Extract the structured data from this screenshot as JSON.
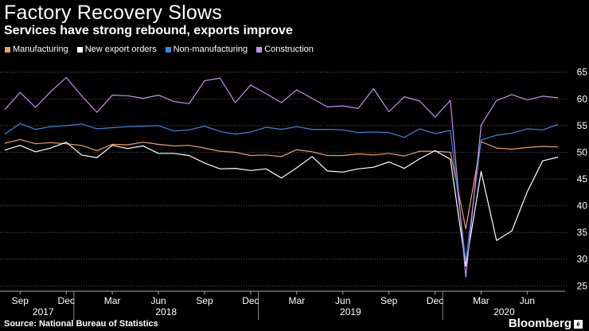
{
  "header": {
    "title": "Factory Recovery Slows",
    "subtitle": "Services have strong rebound, exports improve"
  },
  "footer": {
    "source": "Source: National Bureau of Statistics",
    "brand": "Bloomberg",
    "brand_mark": "é"
  },
  "colors": {
    "background": "#000000",
    "grid": "#5a5a5a",
    "text": "#ffffff"
  },
  "chart_data": {
    "type": "line",
    "title": "Factory Recovery Slows",
    "subtitle": "Services have strong rebound, exports improve",
    "ylim": [
      24,
      66
    ],
    "yticks": [
      25,
      30,
      35,
      40,
      45,
      50,
      55,
      60,
      65
    ],
    "y_axis_side": "right",
    "grid": true,
    "legend_position": "top-left",
    "x": [
      "2017-08",
      "2017-09",
      "2017-10",
      "2017-11",
      "2017-12",
      "2018-01",
      "2018-02",
      "2018-03",
      "2018-04",
      "2018-05",
      "2018-06",
      "2018-07",
      "2018-08",
      "2018-09",
      "2018-10",
      "2018-11",
      "2018-12",
      "2019-01",
      "2019-02",
      "2019-03",
      "2019-04",
      "2019-05",
      "2019-06",
      "2019-07",
      "2019-08",
      "2019-09",
      "2019-10",
      "2019-11",
      "2019-12",
      "2020-01",
      "2020-02",
      "2020-03",
      "2020-04",
      "2020-05",
      "2020-06",
      "2020-07",
      "2020-08"
    ],
    "x_tick_labels": [
      {
        "label": "Sep",
        "index": 1
      },
      {
        "label": "Dec",
        "index": 4
      },
      {
        "label": "Mar",
        "index": 7
      },
      {
        "label": "Jun",
        "index": 10
      },
      {
        "label": "Sep",
        "index": 13
      },
      {
        "label": "Dec",
        "index": 16
      },
      {
        "label": "Mar",
        "index": 19
      },
      {
        "label": "Jun",
        "index": 22
      },
      {
        "label": "Sep",
        "index": 25
      },
      {
        "label": "Dec",
        "index": 28
      },
      {
        "label": "Mar",
        "index": 31
      },
      {
        "label": "Jun",
        "index": 34
      }
    ],
    "year_labels": [
      {
        "label": "2017",
        "index": 2.5
      },
      {
        "label": "2018",
        "index": 10.5
      },
      {
        "label": "2019",
        "index": 22.5
      },
      {
        "label": "2020",
        "index": 32.5
      }
    ],
    "year_separators": [
      4.5,
      16.5,
      28.5
    ],
    "series": [
      {
        "name": "Manufacturing",
        "color": "#f0a060",
        "values": [
          51.7,
          52.4,
          51.6,
          51.8,
          51.6,
          51.3,
          50.3,
          51.5,
          51.4,
          51.9,
          51.5,
          51.2,
          51.3,
          50.8,
          50.2,
          50.0,
          49.4,
          49.5,
          49.2,
          50.5,
          50.1,
          49.4,
          49.4,
          49.7,
          49.5,
          49.8,
          49.3,
          50.2,
          50.2,
          50.0,
          35.7,
          52.0,
          50.8,
          50.6,
          50.9,
          51.1,
          51.0
        ]
      },
      {
        "name": "New export orders",
        "color": "#ffffff",
        "values": [
          50.4,
          51.3,
          50.1,
          50.8,
          51.9,
          49.5,
          49.0,
          51.3,
          50.7,
          51.2,
          49.8,
          49.8,
          49.4,
          48.0,
          46.9,
          47.0,
          46.6,
          46.9,
          45.2,
          47.1,
          49.2,
          46.5,
          46.3,
          46.9,
          47.2,
          48.2,
          47.0,
          48.8,
          50.3,
          48.7,
          28.7,
          46.4,
          33.5,
          35.3,
          42.6,
          48.4,
          49.1
        ]
      },
      {
        "name": "Non-manufacturing",
        "color": "#3a86e0",
        "values": [
          53.4,
          55.4,
          54.3,
          54.8,
          55.0,
          55.3,
          54.4,
          54.6,
          54.8,
          54.9,
          55.0,
          54.0,
          54.2,
          54.9,
          53.9,
          53.4,
          53.8,
          54.7,
          54.3,
          54.8,
          54.3,
          54.3,
          54.2,
          53.7,
          53.8,
          53.7,
          52.8,
          54.4,
          53.5,
          54.1,
          29.6,
          52.3,
          53.2,
          53.6,
          54.4,
          54.2,
          55.2
        ]
      },
      {
        "name": "Construction",
        "color": "#c88ef0",
        "values": [
          58.0,
          61.2,
          58.4,
          61.4,
          64.0,
          60.6,
          57.5,
          60.7,
          60.6,
          60.1,
          60.7,
          59.5,
          59.1,
          63.4,
          63.9,
          59.3,
          62.6,
          61.0,
          59.3,
          61.7,
          60.1,
          58.5,
          58.7,
          58.2,
          61.9,
          57.6,
          60.4,
          59.6,
          56.6,
          59.7,
          26.6,
          55.1,
          59.7,
          60.8,
          59.8,
          60.5,
          60.2
        ]
      }
    ]
  }
}
